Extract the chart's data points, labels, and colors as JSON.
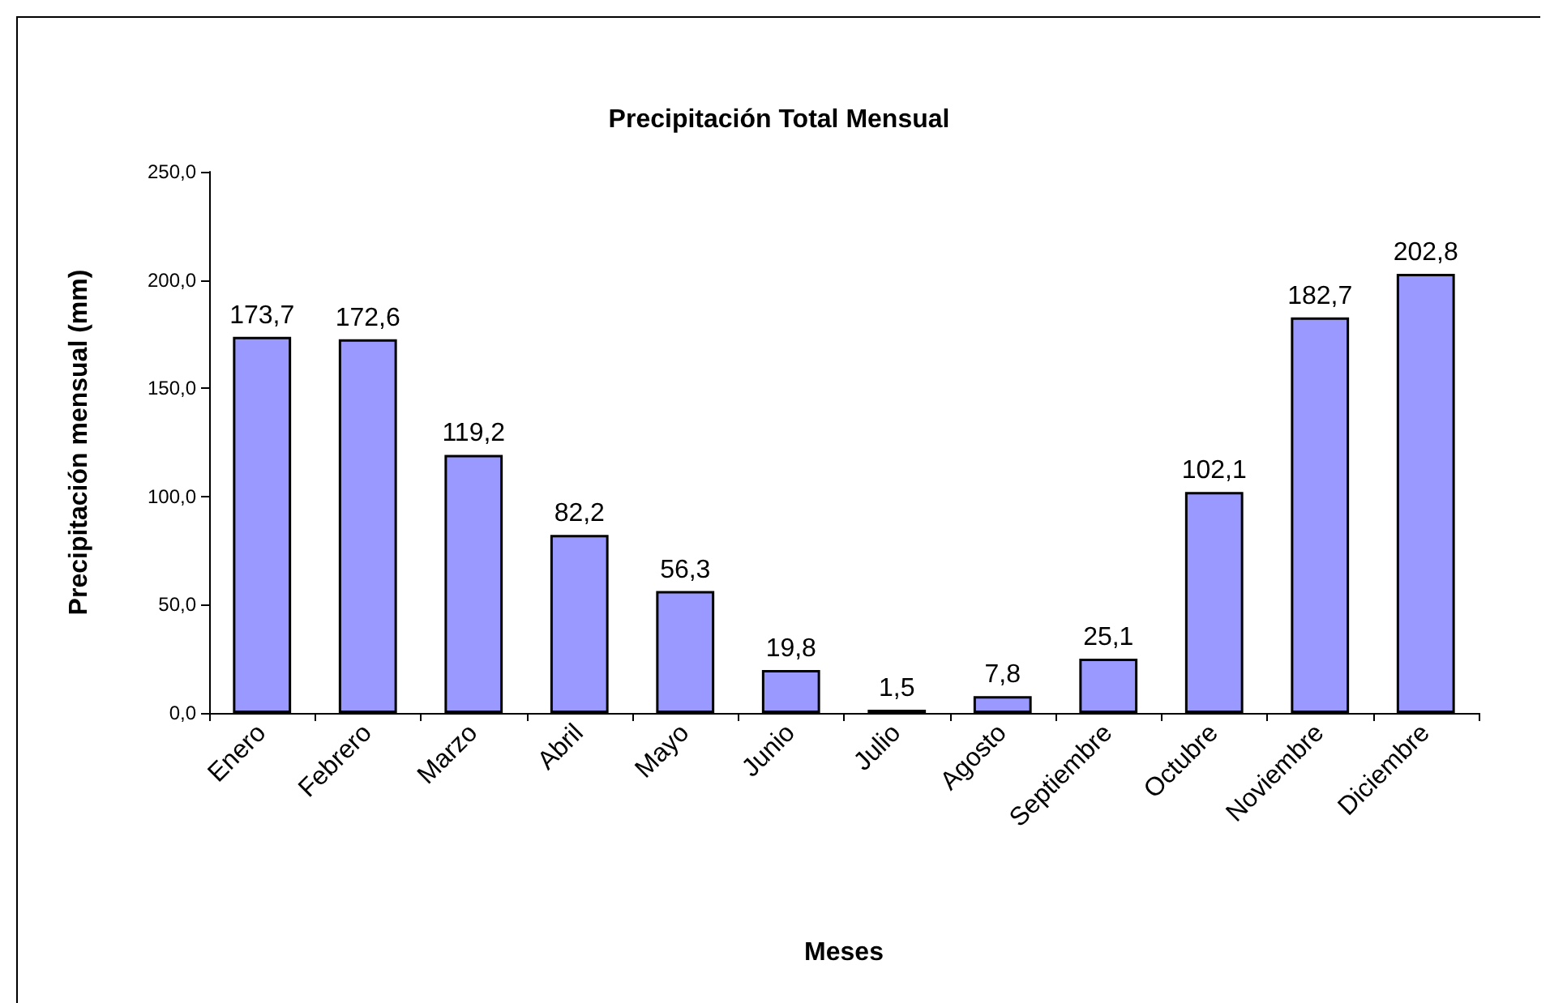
{
  "chart_data": {
    "type": "bar",
    "title": "Precipitación Total Mensual",
    "xlabel": "Meses",
    "ylabel": "Precipitación mensual (mm)",
    "categories": [
      "Enero",
      "Febrero",
      "Marzo",
      "Abril",
      "Mayo",
      "Junio",
      "Julio",
      "Agosto",
      "Septiembre",
      "Octubre",
      "Noviembre",
      "Diciembre"
    ],
    "values": [
      173.7,
      172.6,
      119.2,
      82.2,
      56.3,
      19.8,
      1.5,
      7.8,
      25.1,
      102.1,
      182.7,
      202.8
    ],
    "value_labels": [
      "173,7",
      "172,6",
      "119,2",
      "82,2",
      "56,3",
      "19,8",
      "1,5",
      "7,8",
      "25,1",
      "102,1",
      "182,7",
      "202,8"
    ],
    "color": "#9999ff",
    "ylim": [
      0,
      250
    ],
    "yticks": [
      {
        "value": 0,
        "label": "0,0"
      },
      {
        "value": 50,
        "label": "50,0"
      },
      {
        "value": 100,
        "label": "100,0"
      },
      {
        "value": 150,
        "label": "150,0"
      },
      {
        "value": 200,
        "label": "200,0"
      },
      {
        "value": 250,
        "label": "250,0"
      }
    ],
    "grid": false
  }
}
